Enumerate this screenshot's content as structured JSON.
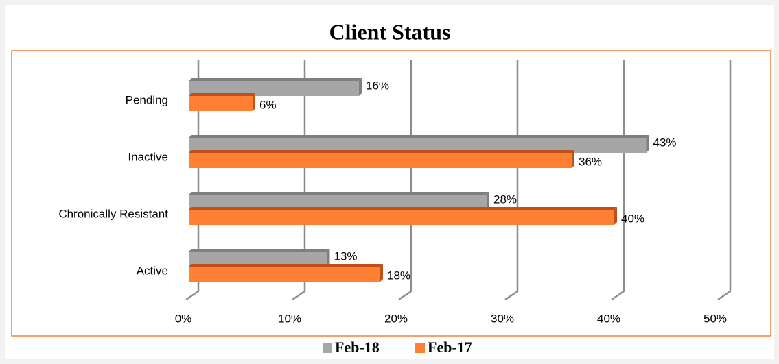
{
  "chart_data": {
    "type": "bar",
    "orientation": "horizontal",
    "title": "Client Status",
    "categories": [
      "Pending",
      "Inactive",
      "Chronically Resistant",
      "Active"
    ],
    "series": [
      {
        "name": "Feb-18",
        "color": "#a6a6a6",
        "values": [
          16,
          43,
          28,
          13
        ],
        "value_labels": [
          "16%",
          "43%",
          "28%",
          "13%"
        ]
      },
      {
        "name": "Feb-17",
        "color": "#ff7f33",
        "values": [
          6,
          36,
          40,
          18
        ],
        "value_labels": [
          "6%",
          "36%",
          "40%",
          "18%"
        ]
      }
    ],
    "xlim": [
      0,
      50
    ],
    "xticks": [
      {
        "value": 0,
        "label": "0%"
      },
      {
        "value": 10,
        "label": "10%"
      },
      {
        "value": 20,
        "label": "20%"
      },
      {
        "value": 30,
        "label": "30%"
      },
      {
        "value": 40,
        "label": "40%"
      },
      {
        "value": 50,
        "label": "50%"
      }
    ],
    "grid": true,
    "legend": "bottom"
  }
}
